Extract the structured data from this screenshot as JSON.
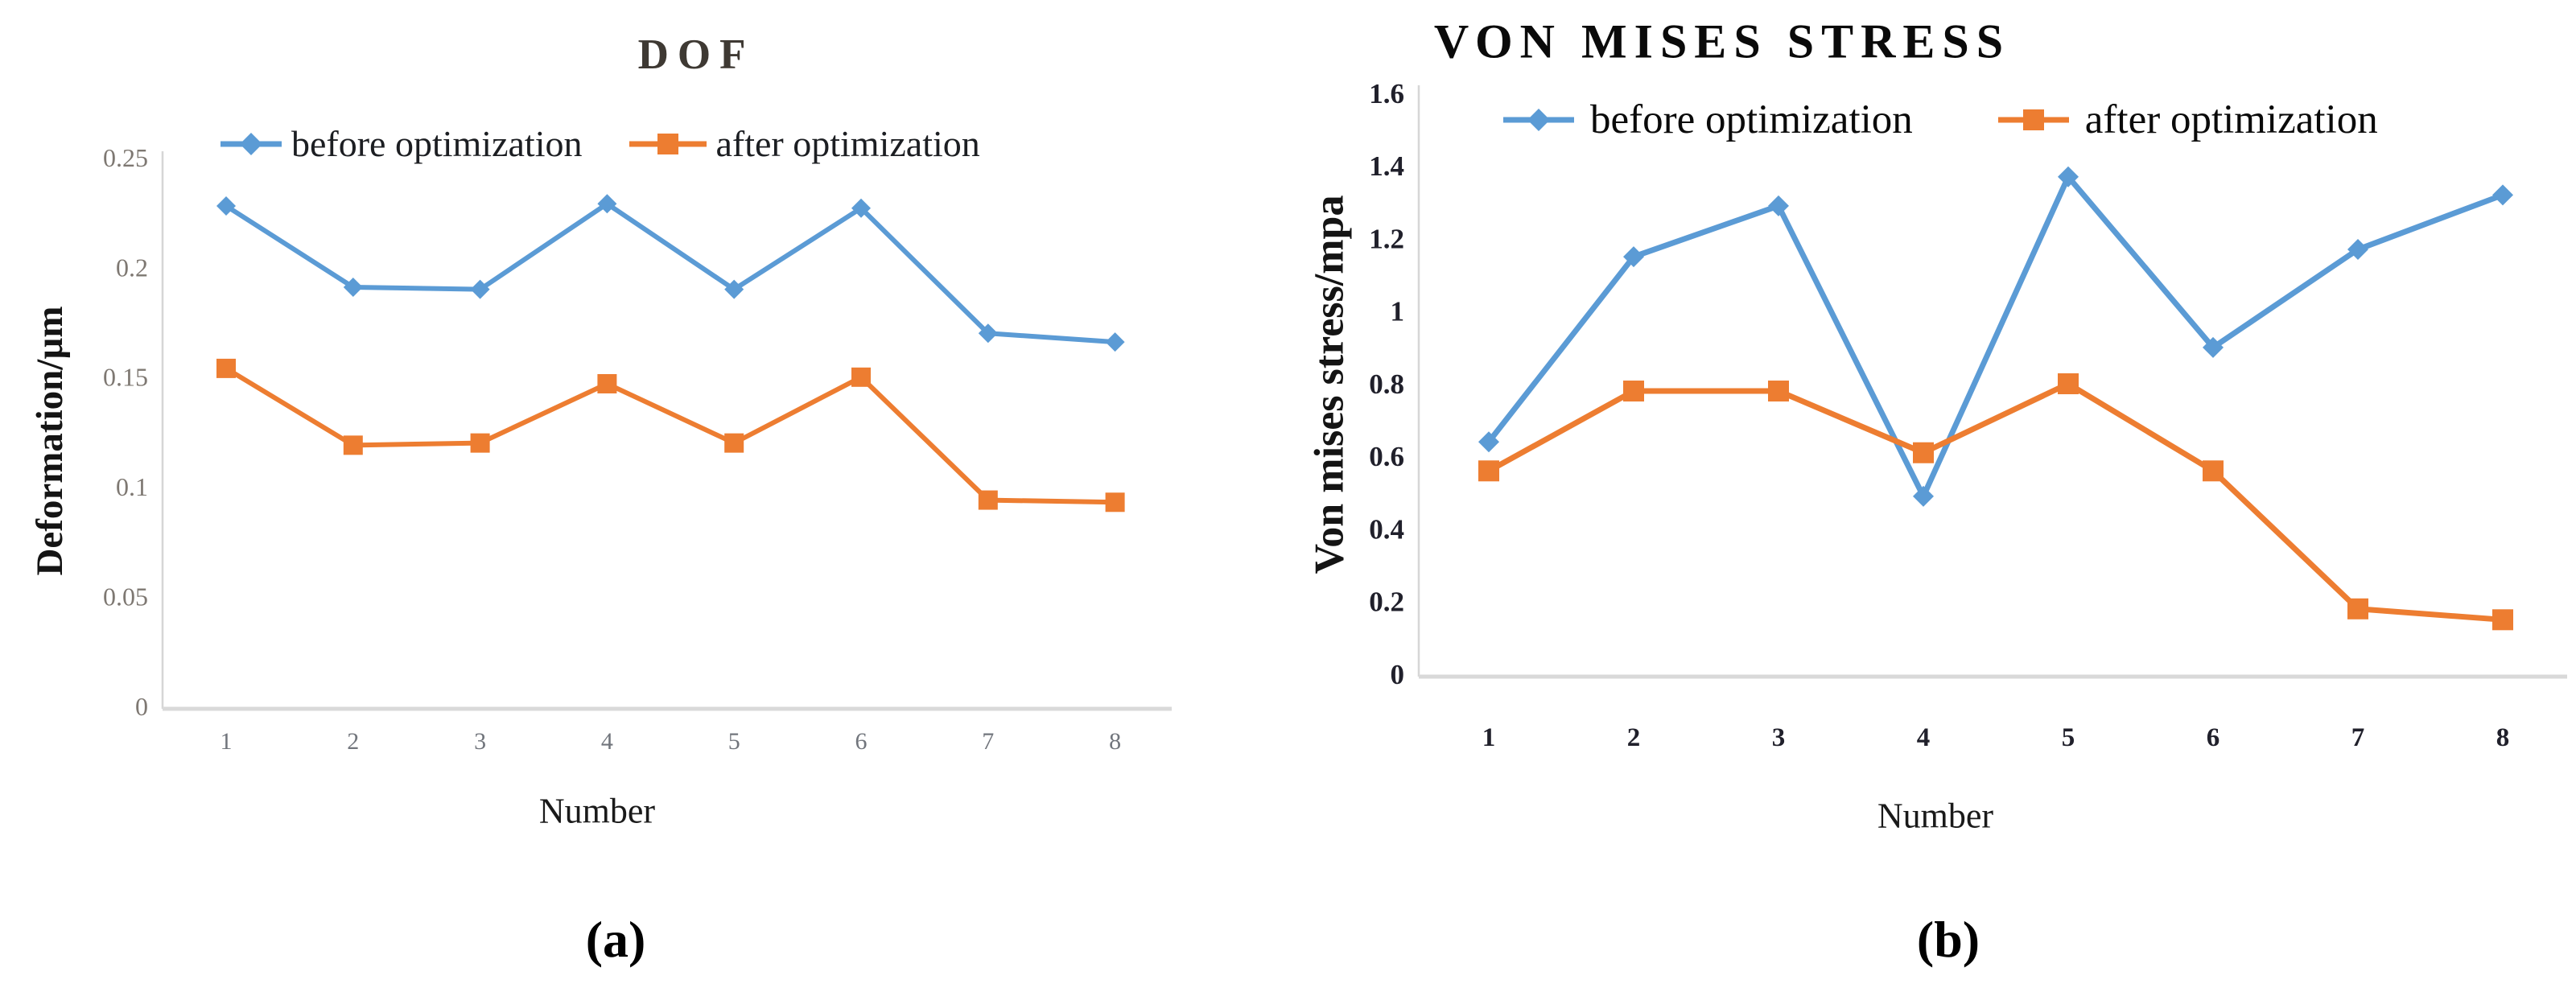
{
  "figure": {
    "background": "#ffffff",
    "accent_blue": "#5B9BD5",
    "accent_orange": "#ED7D31",
    "axis_line_color": "#D9D9D9"
  },
  "chart_data": [
    {
      "type": "line",
      "title": "DOF",
      "caption": "(a)",
      "xlabel": "Number",
      "ylabel": "Deformation/µm",
      "categories": [
        "1",
        "2",
        "3",
        "4",
        "5",
        "6",
        "7",
        "8"
      ],
      "ylim": [
        0,
        0.25
      ],
      "yticks": [
        0,
        0.05,
        0.1,
        0.15,
        0.2,
        0.25
      ],
      "ytick_labels": [
        "0",
        "0.05",
        "0.1",
        "0.15",
        "0.2",
        "0.25"
      ],
      "grid": false,
      "legend_position": "top",
      "series": [
        {
          "name": "before optimization",
          "color": "#5B9BD5",
          "marker": "diamond",
          "values": [
            0.228,
            0.191,
            0.19,
            0.229,
            0.19,
            0.227,
            0.17,
            0.166
          ]
        },
        {
          "name": "after optimization",
          "color": "#ED7D31",
          "marker": "square",
          "values": [
            0.154,
            0.119,
            0.12,
            0.147,
            0.12,
            0.15,
            0.094,
            0.093
          ]
        }
      ]
    },
    {
      "type": "line",
      "title": "VON MISES STRESS",
      "caption": "(b)",
      "xlabel": "Number",
      "ylabel": "Von mises stress/mpa",
      "categories": [
        "1",
        "2",
        "3",
        "4",
        "5",
        "6",
        "7",
        "8"
      ],
      "ylim": [
        0,
        1.6
      ],
      "yticks": [
        0,
        0.2,
        0.4,
        0.6,
        0.8,
        1.0,
        1.2,
        1.4,
        1.6
      ],
      "ytick_labels": [
        "0",
        "0.2",
        "0.4",
        "0.6",
        "0.8",
        "1",
        "1.2",
        "1.4",
        "1.6"
      ],
      "grid": false,
      "legend_position": "top",
      "series": [
        {
          "name": "before optimization",
          "color": "#5B9BD5",
          "marker": "diamond",
          "values": [
            0.64,
            1.15,
            1.29,
            0.49,
            1.37,
            0.9,
            1.17,
            1.32
          ]
        },
        {
          "name": "after optimization",
          "color": "#ED7D31",
          "marker": "square",
          "values": [
            0.56,
            0.78,
            0.78,
            0.61,
            0.8,
            0.56,
            0.18,
            0.15
          ]
        }
      ]
    }
  ]
}
